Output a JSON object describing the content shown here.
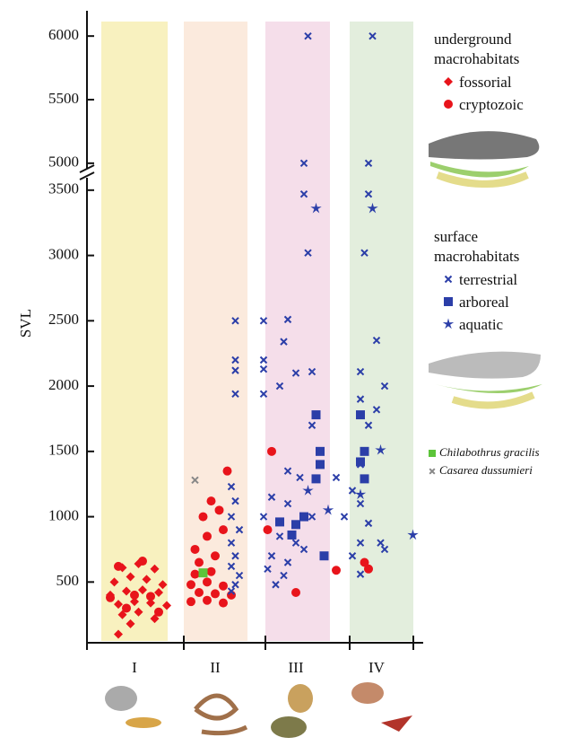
{
  "chart_data": {
    "type": "scatter",
    "ylabel": "SVL",
    "group_labels": [
      "I",
      "II",
      "III",
      "IV"
    ],
    "xlim": [
      0,
      4
    ],
    "y_segments": [
      {
        "ylim": [
          35,
          3650
        ],
        "yticks": [
          500,
          1000,
          1500,
          2000,
          2500,
          3000,
          3500
        ]
      },
      {
        "ylim": [
          4900,
          6100
        ],
        "yticks": [
          5000,
          5500,
          6000
        ]
      }
    ],
    "legend_groups": [
      {
        "title": "underground macrohabitats",
        "series": [
          0,
          1
        ]
      },
      {
        "title": "surface macrohabitats",
        "series": [
          2,
          3,
          4
        ]
      }
    ],
    "series": [
      {
        "name": "fossorial",
        "marker": "diamond",
        "color": "#e8141b",
        "x": [
          0.35,
          0.55,
          0.75,
          0.25,
          0.45,
          0.65,
          0.85,
          0.2,
          0.4,
          0.6,
          0.8,
          0.3,
          0.5,
          0.7,
          0.9,
          0.35,
          0.55,
          0.75,
          0.45,
          0.3
        ],
        "values": [
          610,
          640,
          600,
          500,
          540,
          520,
          480,
          400,
          430,
          440,
          420,
          330,
          350,
          340,
          320,
          250,
          270,
          220,
          180,
          100
        ]
      },
      {
        "name": "cryptozoic",
        "marker": "circle",
        "color": "#e8141b",
        "x": [
          0.3,
          0.6,
          0.2,
          0.5,
          0.7,
          0.4,
          0.8,
          1.2,
          1.4,
          1.6,
          1.3,
          1.5,
          1.7,
          1.2,
          1.4,
          1.6,
          1.25,
          1.45,
          1.3,
          1.5,
          1.25,
          1.4,
          1.6,
          1.35,
          1.55,
          1.45,
          1.65,
          2.2,
          2.15,
          2.5,
          3.0,
          3.4,
          3.35
        ],
        "values": [
          620,
          660,
          380,
          400,
          390,
          300,
          270,
          350,
          360,
          340,
          420,
          410,
          400,
          480,
          500,
          470,
          560,
          580,
          650,
          700,
          750,
          850,
          900,
          1000,
          1050,
          1120,
          1350,
          1500,
          900,
          420,
          590,
          600,
          650
        ]
      },
      {
        "name": "terrestrial",
        "marker": "x",
        "color": "#2b3ea8",
        "x": [
          1.75,
          1.75,
          1.75,
          1.75,
          1.7,
          1.75,
          1.7,
          1.8,
          1.7,
          1.75,
          1.7,
          1.8,
          1.75,
          1.7,
          2.1,
          2.4,
          2.1,
          2.1,
          2.1,
          2.35,
          2.5,
          2.3,
          2.7,
          2.65,
          2.6,
          2.6,
          2.65,
          2.2,
          2.4,
          2.1,
          2.3,
          2.5,
          2.2,
          2.4,
          2.6,
          2.35,
          2.15,
          2.55,
          2.7,
          2.4,
          2.7,
          2.25,
          3.45,
          3.4,
          3.4,
          3.35,
          3.3,
          3.5,
          3.6,
          3.5,
          3.3,
          3.4,
          3.3,
          3.3,
          3.4,
          3.3,
          3.55,
          3.2,
          3.6,
          3.3,
          3.0,
          3.2,
          3.1
        ],
        "values": [
          2500,
          2200,
          2120,
          1940,
          1230,
          1120,
          1000,
          900,
          800,
          700,
          620,
          550,
          480,
          430,
          2500,
          2510,
          2200,
          2130,
          1940,
          2340,
          2100,
          2000,
          2110,
          6000,
          5000,
          3470,
          3020,
          1150,
          1100,
          1000,
          850,
          800,
          700,
          650,
          750,
          550,
          600,
          1300,
          1700,
          1350,
          1000,
          480,
          6000,
          5000,
          3470,
          3020,
          2110,
          2350,
          2000,
          1820,
          1900,
          1700,
          1400,
          1100,
          950,
          800,
          800,
          700,
          750,
          560,
          1300,
          1200,
          1000
        ]
      },
      {
        "name": "arboreal",
        "marker": "square",
        "color": "#2b3ea8",
        "x": [
          2.75,
          2.8,
          2.8,
          2.75,
          2.5,
          2.6,
          2.45,
          2.85,
          2.3,
          3.3,
          3.35,
          3.3,
          3.35
        ],
        "values": [
          1780,
          1500,
          1400,
          1290,
          940,
          1000,
          860,
          700,
          960,
          1780,
          1500,
          1420,
          1290
        ]
      },
      {
        "name": "aquatic",
        "marker": "star",
        "color": "#2b3ea8",
        "x": [
          2.75,
          3.45,
          3.55,
          3.95,
          2.65,
          3.3,
          2.9
        ],
        "values": [
          3360,
          3360,
          1510,
          860,
          1200,
          1170,
          1050
        ]
      },
      {
        "name": "Chilabothrus gracilis",
        "marker": "square",
        "color": "#5cc43a",
        "x": [
          1.35
        ],
        "values": [
          570
        ]
      },
      {
        "name": "Casarea dussumieri",
        "marker": "x",
        "color": "#888888",
        "x": [
          1.25
        ],
        "values": [
          1280
        ]
      }
    ]
  }
}
